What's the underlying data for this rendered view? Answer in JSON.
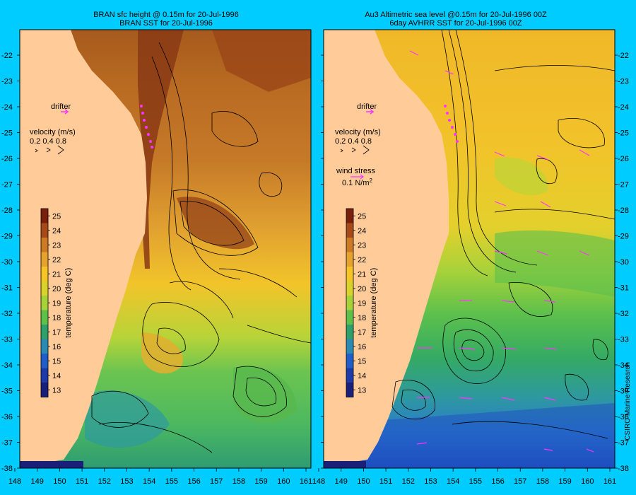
{
  "left_panel": {
    "title_line1": "BRAN sfc height @ 0.15m for 20-Jul-1996",
    "title_line2": "BRAN SST for 20-Jul-1996",
    "drifter_label": "drifter",
    "velocity_label": "velocity (m/s)",
    "velocity_values": "0.2 0.4 0.8",
    "colorbar_title": "temperature (deg C)"
  },
  "right_panel": {
    "title_line1": "Au3 Altimetric sea level  @0.15m  for 20-Jul-1996 00Z",
    "title_line2": "6day AVHRR SST for 20-Jul-1996 00Z",
    "drifter_label": "drifter",
    "velocity_label": "velocity (m/s)",
    "velocity_values": "0.2 0.4 0.8",
    "wind_label": "wind stress",
    "wind_value": "0.1 N/m",
    "wind_unit_sup": "2",
    "colorbar_title": "temperature (deg C)"
  },
  "colorbar_ticks": [
    "25",
    "24",
    "23",
    "22",
    "21",
    "20",
    "19",
    "18",
    "17",
    "16",
    "15",
    "14",
    "13"
  ],
  "colorbar_colors": [
    "#7a1e0e",
    "#a64a1a",
    "#cc7a26",
    "#e6a22d",
    "#f5c427",
    "#d9d22b",
    "#a5d23a",
    "#5cc04a",
    "#2ea06a",
    "#2a8ab4",
    "#1e5ec8",
    "#1c3aa8",
    "#1a1f7a"
  ],
  "lon_ticks": [
    "148",
    "149",
    "150",
    "151",
    "152",
    "153",
    "154",
    "155",
    "156",
    "157",
    "158",
    "159",
    "160",
    "161"
  ],
  "lat_ticks": [
    "-22",
    "-23",
    "-24",
    "-25",
    "-26",
    "-27",
    "-28",
    "-29",
    "-30",
    "-31",
    "-32",
    "-33",
    "-34",
    "-35",
    "-36",
    "-37",
    "-38"
  ],
  "credit": "CSIRO Marine Research",
  "colors": {
    "background": "#00ccff",
    "land": "#ffcc99",
    "contour": "#000000",
    "arrow": "#ff33ff"
  }
}
